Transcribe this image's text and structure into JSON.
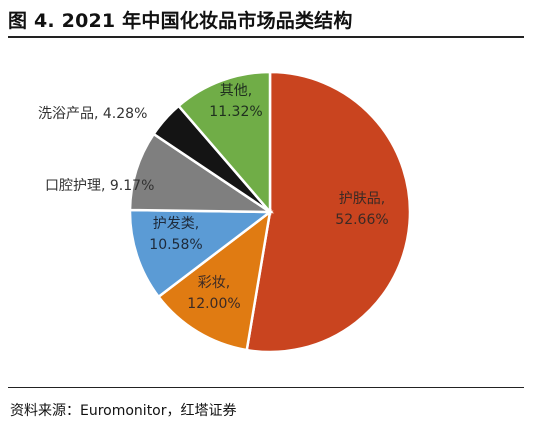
{
  "figure": {
    "title": "图 4. 2021 年中国化妆品市场品类结构",
    "source": "资料来源：Euromonitor，红塔证券"
  },
  "chart_data": {
    "type": "pie",
    "title": "",
    "unit": "%",
    "start_angle_deg": 0,
    "direction": "clockwise",
    "slices": [
      {
        "label": "护肤品",
        "value": 52.66,
        "display": "52.66%",
        "color": "#c9441f",
        "label_color": "#3b2a25"
      },
      {
        "label": "彩妆",
        "value": 12.0,
        "display": "12.00%",
        "color": "#e07b12",
        "label_color": "#3b2a25"
      },
      {
        "label": "护发类",
        "value": 10.58,
        "display": "10.58%",
        "color": "#5b9bd5",
        "label_color": "#1e2a3a"
      },
      {
        "label": "口腔护理",
        "value": 9.17,
        "display": "9.17%",
        "color": "#7f7f7f",
        "label_color": "#333333"
      },
      {
        "label": "洗浴产品",
        "value": 4.28,
        "display": "4.28%",
        "color": "#141414",
        "label_color": "#333333"
      },
      {
        "label": "其他",
        "value": 11.32,
        "display": "11.32%",
        "color": "#70ad47",
        "label_color": "#1f2f1f"
      }
    ]
  }
}
